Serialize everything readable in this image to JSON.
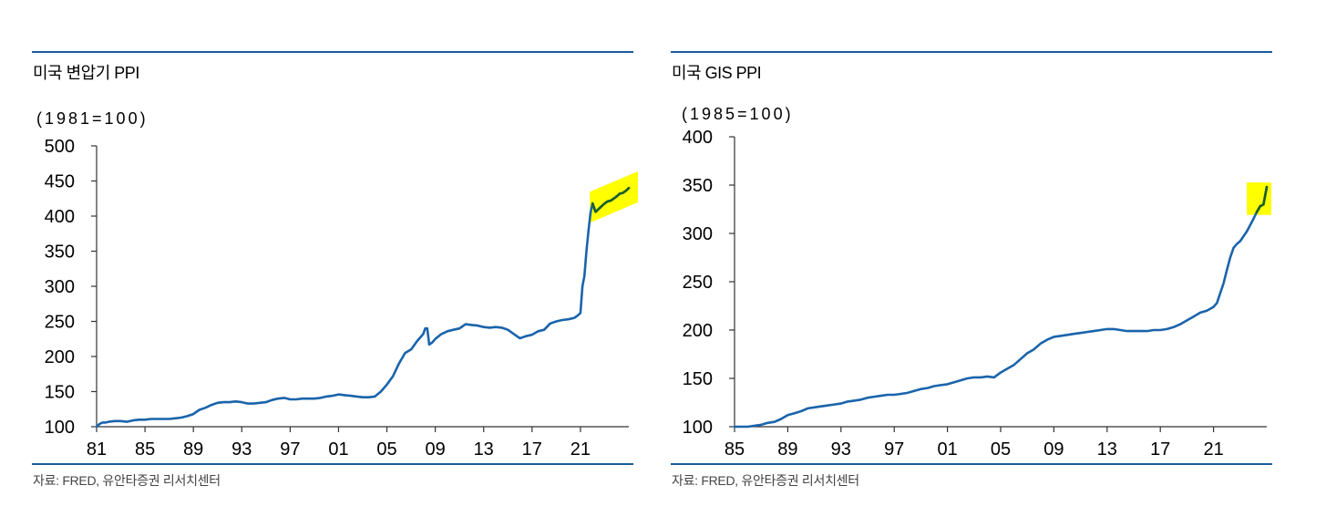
{
  "colors": {
    "rule": "#1d5b9b",
    "text": "#000000",
    "source_text": "#444444",
    "axis": "#333333"
  },
  "chart_data": [
    {
      "type": "line",
      "title": "미국 변압기 PPI",
      "unit_label": "(1981=100)",
      "source": "자료: FRED, 유안타증권 리서치센터",
      "xlim": [
        "1981-01",
        "2025-01"
      ],
      "ylim": [
        100,
        500
      ],
      "yticks": [
        100,
        150,
        200,
        250,
        300,
        350,
        400,
        450,
        500
      ],
      "xticks": [
        {
          "at": "1981-01",
          "label": "81"
        },
        {
          "at": "1985-01",
          "label": "85"
        },
        {
          "at": "1989-01",
          "label": "89"
        },
        {
          "at": "1993-01",
          "label": "93"
        },
        {
          "at": "1997-01",
          "label": "97"
        },
        {
          "at": "2001-01",
          "label": "01"
        },
        {
          "at": "2005-01",
          "label": "05"
        },
        {
          "at": "2009-01",
          "label": "09"
        },
        {
          "at": "2013-01",
          "label": "13"
        },
        {
          "at": "2017-01",
          "label": "17"
        },
        {
          "at": "2021-01",
          "label": "21"
        }
      ],
      "grid": false,
      "series": [
        {
          "color": "#1a64ab",
          "points": [
            [
              "1981-01",
              100
            ],
            [
              "1981-04",
              104
            ],
            [
              "1981-07",
              106
            ],
            [
              "1981-10",
              106
            ],
            [
              "1982-01",
              107
            ],
            [
              "1982-07",
              108
            ],
            [
              "1983-01",
              108
            ],
            [
              "1983-07",
              107
            ],
            [
              "1984-01",
              109
            ],
            [
              "1984-07",
              110
            ],
            [
              "1985-01",
              110
            ],
            [
              "1985-07",
              111
            ],
            [
              "1986-01",
              111
            ],
            [
              "1986-07",
              111
            ],
            [
              "1987-01",
              111
            ],
            [
              "1987-07",
              112
            ],
            [
              "1988-01",
              113
            ],
            [
              "1988-07",
              115
            ],
            [
              "1989-01",
              118
            ],
            [
              "1989-07",
              124
            ],
            [
              "1990-01",
              127
            ],
            [
              "1990-07",
              131
            ],
            [
              "1991-01",
              134
            ],
            [
              "1991-07",
              135
            ],
            [
              "1992-01",
              135
            ],
            [
              "1992-07",
              136
            ],
            [
              "1993-01",
              135
            ],
            [
              "1993-07",
              133
            ],
            [
              "1994-01",
              133
            ],
            [
              "1994-07",
              134
            ],
            [
              "1995-01",
              135
            ],
            [
              "1995-07",
              138
            ],
            [
              "1996-01",
              140
            ],
            [
              "1996-07",
              141
            ],
            [
              "1997-01",
              139
            ],
            [
              "1997-07",
              139
            ],
            [
              "1998-01",
              140
            ],
            [
              "1998-07",
              140
            ],
            [
              "1999-01",
              140
            ],
            [
              "1999-07",
              141
            ],
            [
              "2000-01",
              143
            ],
            [
              "2000-07",
              144
            ],
            [
              "2001-01",
              146
            ],
            [
              "2001-07",
              145
            ],
            [
              "2002-01",
              144
            ],
            [
              "2002-07",
              143
            ],
            [
              "2003-01",
              142
            ],
            [
              "2003-07",
              142
            ],
            [
              "2004-01",
              143
            ],
            [
              "2004-07",
              150
            ],
            [
              "2005-01",
              160
            ],
            [
              "2005-07",
              172
            ],
            [
              "2006-01",
              190
            ],
            [
              "2006-07",
              205
            ],
            [
              "2007-01",
              210
            ],
            [
              "2007-07",
              222
            ],
            [
              "2008-01",
              232
            ],
            [
              "2008-03",
              240
            ],
            [
              "2008-05",
              240
            ],
            [
              "2008-07",
              217
            ],
            [
              "2008-10",
              220
            ],
            [
              "2009-01",
              225
            ],
            [
              "2009-07",
              232
            ],
            [
              "2010-01",
              236
            ],
            [
              "2010-07",
              238
            ],
            [
              "2011-01",
              240
            ],
            [
              "2011-07",
              246
            ],
            [
              "2012-01",
              245
            ],
            [
              "2012-07",
              244
            ],
            [
              "2013-01",
              242
            ],
            [
              "2013-07",
              241
            ],
            [
              "2014-01",
              242
            ],
            [
              "2014-07",
              241
            ],
            [
              "2015-01",
              238
            ],
            [
              "2015-07",
              232
            ],
            [
              "2016-01",
              226
            ],
            [
              "2016-07",
              229
            ],
            [
              "2017-01",
              231
            ],
            [
              "2017-07",
              236
            ],
            [
              "2018-01",
              238
            ],
            [
              "2018-07",
              247
            ],
            [
              "2019-01",
              250
            ],
            [
              "2019-07",
              252
            ],
            [
              "2020-01",
              253
            ],
            [
              "2020-07",
              255
            ],
            [
              "2020-10",
              258
            ],
            [
              "2021-01",
              262
            ],
            [
              "2021-03",
              300
            ],
            [
              "2021-05",
              315
            ],
            [
              "2021-07",
              350
            ],
            [
              "2021-09",
              380
            ],
            [
              "2021-11",
              405
            ],
            [
              "2022-01",
              418
            ],
            [
              "2022-04",
              406
            ],
            [
              "2022-07",
              410
            ],
            [
              "2022-10",
              414
            ],
            [
              "2023-01",
              418
            ],
            [
              "2023-04",
              421
            ],
            [
              "2023-07",
              422
            ],
            [
              "2023-10",
              425
            ],
            [
              "2024-01",
              428
            ],
            [
              "2024-04",
              432
            ],
            [
              "2024-07",
              433
            ],
            [
              "2024-10",
              436
            ],
            [
              "2025-01",
              440
            ]
          ]
        }
      ],
      "highlight": {
        "from": "2022-01",
        "to": "2025-01",
        "fill": "#ffff00",
        "line_color": "#1b5e2a"
      }
    },
    {
      "type": "line",
      "title": "미국 GIS PPI",
      "unit_label": "(1985=100)",
      "source": "자료: FRED, 유안타증권 리서치센터",
      "xlim": [
        "1985-01",
        "2025-01"
      ],
      "ylim": [
        100,
        400
      ],
      "yticks": [
        100,
        150,
        200,
        250,
        300,
        350,
        400
      ],
      "xticks": [
        {
          "at": "1985-01",
          "label": "85"
        },
        {
          "at": "1989-01",
          "label": "89"
        },
        {
          "at": "1993-01",
          "label": "93"
        },
        {
          "at": "1997-01",
          "label": "97"
        },
        {
          "at": "2001-01",
          "label": "01"
        },
        {
          "at": "2005-01",
          "label": "05"
        },
        {
          "at": "2009-01",
          "label": "09"
        },
        {
          "at": "2013-01",
          "label": "13"
        },
        {
          "at": "2017-01",
          "label": "17"
        },
        {
          "at": "2021-01",
          "label": "21"
        }
      ],
      "grid": false,
      "series": [
        {
          "color": "#1a64ab",
          "points": [
            [
              "1985-01",
              100
            ],
            [
              "1985-07",
              100
            ],
            [
              "1986-01",
              100
            ],
            [
              "1986-07",
              101
            ],
            [
              "1987-01",
              102
            ],
            [
              "1987-07",
              104
            ],
            [
              "1988-01",
              105
            ],
            [
              "1988-07",
              108
            ],
            [
              "1989-01",
              112
            ],
            [
              "1989-07",
              114
            ],
            [
              "1990-01",
              116
            ],
            [
              "1990-07",
              119
            ],
            [
              "1991-01",
              120
            ],
            [
              "1991-07",
              121
            ],
            [
              "1992-01",
              122
            ],
            [
              "1992-07",
              123
            ],
            [
              "1993-01",
              124
            ],
            [
              "1993-07",
              126
            ],
            [
              "1994-01",
              127
            ],
            [
              "1994-07",
              128
            ],
            [
              "1995-01",
              130
            ],
            [
              "1995-07",
              131
            ],
            [
              "1996-01",
              132
            ],
            [
              "1996-07",
              133
            ],
            [
              "1997-01",
              133
            ],
            [
              "1997-07",
              134
            ],
            [
              "1998-01",
              135
            ],
            [
              "1998-07",
              137
            ],
            [
              "1999-01",
              139
            ],
            [
              "1999-07",
              140
            ],
            [
              "2000-01",
              142
            ],
            [
              "2000-07",
              143
            ],
            [
              "2001-01",
              144
            ],
            [
              "2001-07",
              146
            ],
            [
              "2002-01",
              148
            ],
            [
              "2002-07",
              150
            ],
            [
              "2003-01",
              151
            ],
            [
              "2003-07",
              151
            ],
            [
              "2004-01",
              152
            ],
            [
              "2004-07",
              151
            ],
            [
              "2005-01",
              156
            ],
            [
              "2005-07",
              160
            ],
            [
              "2006-01",
              164
            ],
            [
              "2006-07",
              170
            ],
            [
              "2007-01",
              176
            ],
            [
              "2007-07",
              180
            ],
            [
              "2008-01",
              186
            ],
            [
              "2008-07",
              190
            ],
            [
              "2009-01",
              193
            ],
            [
              "2009-07",
              194
            ],
            [
              "2010-01",
              195
            ],
            [
              "2010-07",
              196
            ],
            [
              "2011-01",
              197
            ],
            [
              "2011-07",
              198
            ],
            [
              "2012-01",
              199
            ],
            [
              "2012-07",
              200
            ],
            [
              "2013-01",
              201
            ],
            [
              "2013-07",
              201
            ],
            [
              "2014-01",
              200
            ],
            [
              "2014-07",
              199
            ],
            [
              "2015-01",
              199
            ],
            [
              "2015-07",
              199
            ],
            [
              "2016-01",
              199
            ],
            [
              "2016-07",
              200
            ],
            [
              "2017-01",
              200
            ],
            [
              "2017-07",
              201
            ],
            [
              "2018-01",
              203
            ],
            [
              "2018-07",
              206
            ],
            [
              "2019-01",
              210
            ],
            [
              "2019-07",
              214
            ],
            [
              "2020-01",
              218
            ],
            [
              "2020-07",
              220
            ],
            [
              "2021-01",
              224
            ],
            [
              "2021-04",
              228
            ],
            [
              "2021-07",
              238
            ],
            [
              "2021-10",
              248
            ],
            [
              "2022-01",
              262
            ],
            [
              "2022-04",
              275
            ],
            [
              "2022-07",
              285
            ],
            [
              "2022-10",
              289
            ],
            [
              "2023-01",
              292
            ],
            [
              "2023-07",
              302
            ],
            [
              "2024-01",
              315
            ],
            [
              "2024-04",
              322
            ],
            [
              "2024-07",
              328
            ],
            [
              "2024-10",
              330
            ],
            [
              "2025-01",
              348
            ]
          ]
        }
      ],
      "highlight": {
        "from": "2024-04",
        "to": "2025-01",
        "fill": "#ffff00",
        "line_color": "#1b5e2a"
      }
    }
  ]
}
